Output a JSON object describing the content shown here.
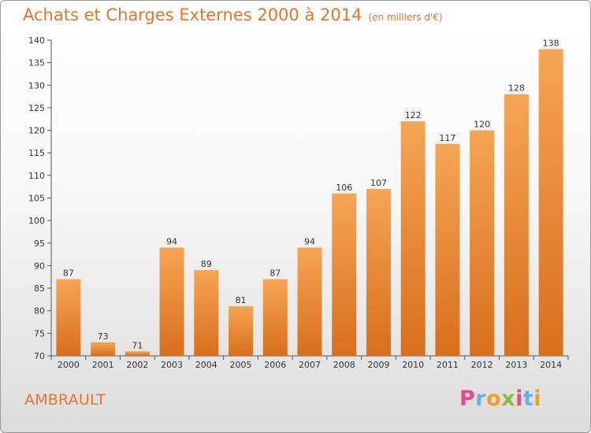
{
  "header": {
    "title": "Achats et Charges Externes 2000 à 2014",
    "subtitle": "(en milliers d'€)"
  },
  "footer": {
    "place": "AMBRAULT",
    "brand_letters": [
      "P",
      "r",
      "o",
      "x",
      "i",
      "t",
      "i"
    ],
    "brand_colors": [
      "#e34b8b",
      "#6ab0df",
      "#f0a020",
      "#8abf3a",
      "#e34b8b",
      "#6ab0df",
      "#f0a020"
    ]
  },
  "colors": {
    "accent": "#e8732c",
    "bar_top": "#f5a555",
    "bar_bottom": "#d86f1c"
  },
  "chart_data": {
    "type": "bar",
    "title": "Achats et Charges Externes 2000 à 2014",
    "subtitle": "(en milliers d'€)",
    "categories": [
      "2000",
      "2001",
      "2002",
      "2003",
      "2004",
      "2005",
      "2006",
      "2007",
      "2008",
      "2009",
      "2010",
      "2011",
      "2012",
      "2013",
      "2014"
    ],
    "values": [
      87,
      73,
      71,
      94,
      89,
      81,
      87,
      94,
      106,
      107,
      122,
      117,
      120,
      128,
      138
    ],
    "ylim": [
      70,
      140
    ],
    "yticks": [
      70,
      75,
      80,
      85,
      90,
      95,
      100,
      105,
      110,
      115,
      120,
      125,
      130,
      135,
      140
    ],
    "grid": false
  }
}
